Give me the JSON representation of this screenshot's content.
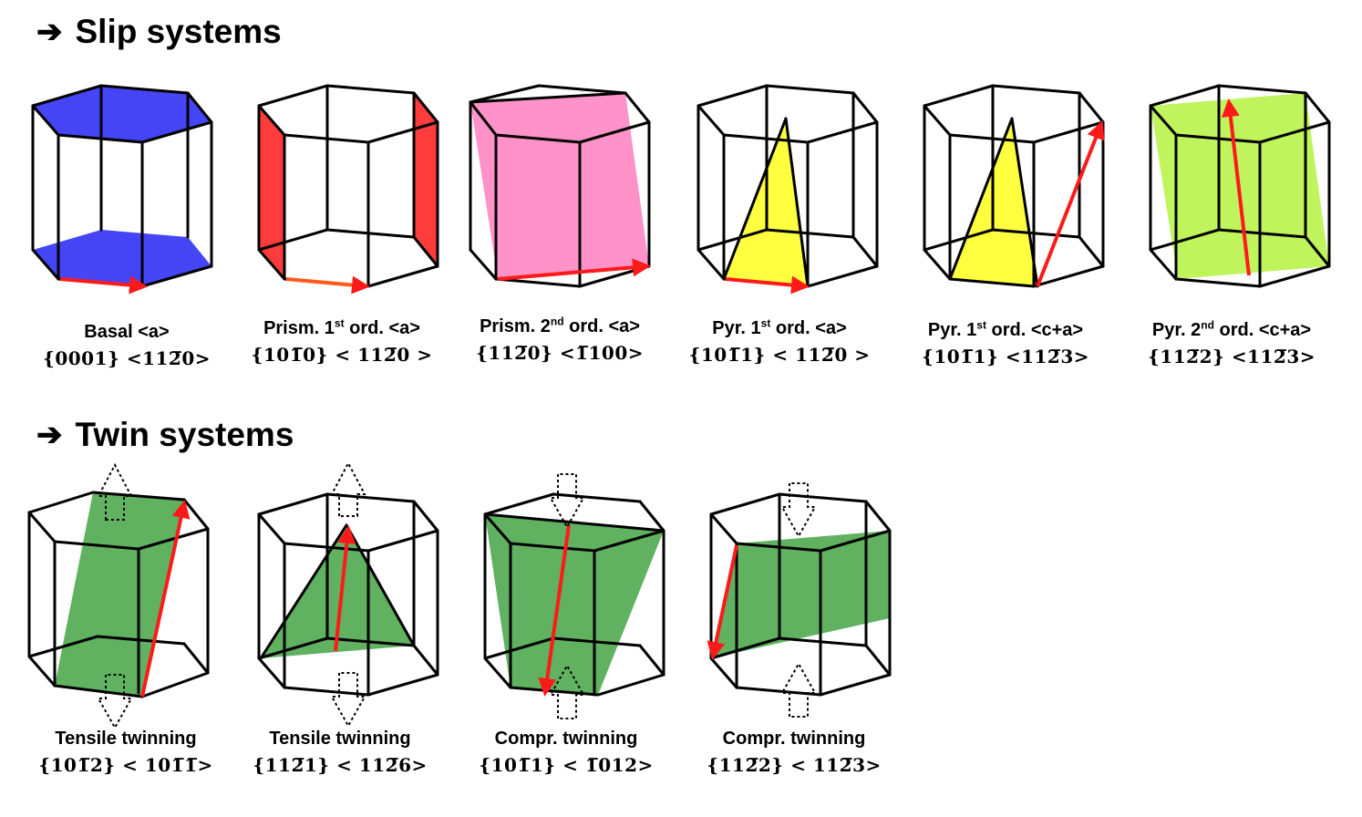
{
  "headings": {
    "slip": "Slip systems",
    "twin": "Twin systems",
    "arrow_glyph": "➔"
  },
  "colors": {
    "basal": "#3b3bf5",
    "prism1": "#ff3c3c",
    "prism2": "#ff7fc0",
    "pyr": "#ffff40",
    "pyr2": "#b8f34a",
    "twin": "#4fa84f",
    "direction": "#ff1a1a",
    "edge": "#000000"
  },
  "slip_systems": [
    {
      "name": "Basal <a>",
      "index": "{0001} <11²̅°>"
    },
    {
      "name": "Prism. 1st ord. <a>",
      "index": "{10±̅°} < 11²̅° >"
    }
  ],
  "slip_labels": [
    {
      "name": "Basal <a>",
      "index": "{0001} <112̅0>"
    },
    {
      "name": "Prism. 1",
      "sup": "st",
      "name_rest": " ord. <a>",
      "index": "{101̅0} < 112̅0 >"
    },
    {
      "name": "Prism. 2",
      "sup": "nd",
      "name_rest": " ord. <a>",
      "index": "{112̅0} <1̅100>"
    },
    {
      "name": "Pyr. 1",
      "sup": "st",
      "name_rest": " ord. <a>",
      "index": "{101̅1} < 112̅0 >"
    },
    {
      "name": "Pyr. 1",
      "sup": "st",
      "name_rest": " ord. <c+a>",
      "index": "{101̅1} <112̅3>"
    },
    {
      "name": "Pyr. 2",
      "sup": "nd",
      "name_rest": " ord. <c+a>",
      "index": "{112̅2} <112̅3>"
    }
  ],
  "twin_labels": [
    {
      "name": "Tensile twinning",
      "index": "{101̅2} < 101̅1̅>"
    },
    {
      "name": "Tensile twinning",
      "index": "{112̅1} < 112̅6>"
    },
    {
      "name": "Compr.  twinning",
      "index": "{101̅1} < 1̅012>"
    },
    {
      "name": "Compr. twinning",
      "index": "{112̅2} < 112̅3>"
    }
  ]
}
